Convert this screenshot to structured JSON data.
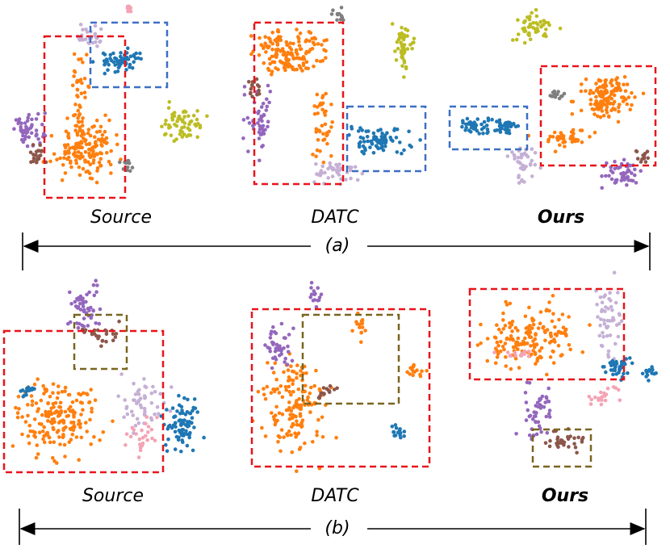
{
  "figure": {
    "rows": [
      {
        "label": "(a)",
        "panels": [
          {
            "caption": "Source"
          },
          {
            "caption": "DATC"
          },
          {
            "caption": "Ours"
          }
        ]
      },
      {
        "label": "(b)",
        "panels": [
          {
            "caption": "Source"
          },
          {
            "caption": "DATC"
          },
          {
            "caption": "Ours"
          }
        ]
      }
    ]
  }
}
